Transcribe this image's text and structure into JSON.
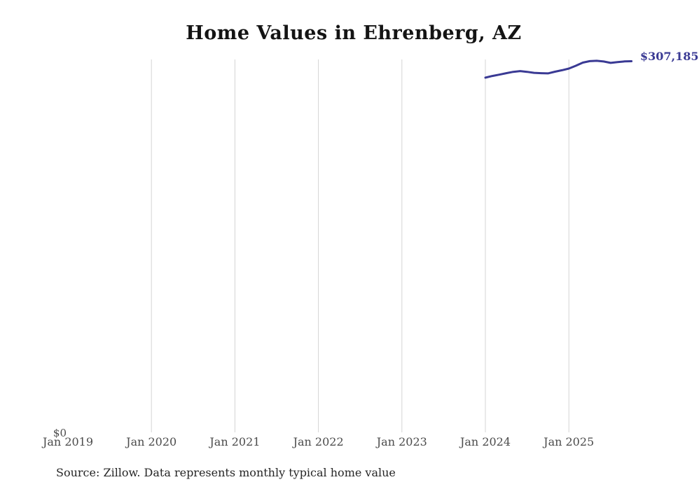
{
  "chart_data": {
    "type": "line",
    "title": "Home Values in Ehrenberg, AZ",
    "source_note": "Source: Zillow. Data represents monthly typical home value",
    "end_label": "$307,185",
    "xlabel": "",
    "ylabel": "",
    "ylim": [
      0,
      308600
    ],
    "grid": "vertical-only",
    "legend_position": "none",
    "y_tick_labels": [
      "$0"
    ],
    "x_ticks": [
      {
        "label": "Jan 2019",
        "year": 2019,
        "gridline": false
      },
      {
        "label": "Jan 2020",
        "year": 2020,
        "gridline": true
      },
      {
        "label": "Jan 2021",
        "year": 2021,
        "gridline": true
      },
      {
        "label": "Jan 2022",
        "year": 2022,
        "gridline": true
      },
      {
        "label": "Jan 2023",
        "year": 2023,
        "gridline": true
      },
      {
        "label": "Jan 2024",
        "year": 2024,
        "gridline": true
      },
      {
        "label": "Jan 2025",
        "year": 2025,
        "gridline": true
      }
    ],
    "series": [
      {
        "name": "Monthly typical home value",
        "points": [
          {
            "month": "2024-01",
            "value": 293600
          },
          {
            "month": "2024-02",
            "value": 295000
          },
          {
            "month": "2024-03",
            "value": 296100
          },
          {
            "month": "2024-04",
            "value": 297300
          },
          {
            "month": "2024-05",
            "value": 298400
          },
          {
            "month": "2024-06",
            "value": 299000
          },
          {
            "month": "2024-07",
            "value": 298400
          },
          {
            "month": "2024-08",
            "value": 297600
          },
          {
            "month": "2024-09",
            "value": 297300
          },
          {
            "month": "2024-10",
            "value": 297100
          },
          {
            "month": "2024-11",
            "value": 298500
          },
          {
            "month": "2024-12",
            "value": 299700
          },
          {
            "month": "2025-01",
            "value": 301100
          },
          {
            "month": "2025-02",
            "value": 303400
          },
          {
            "month": "2025-03",
            "value": 306000
          },
          {
            "month": "2025-04",
            "value": 307200
          },
          {
            "month": "2025-05",
            "value": 307500
          },
          {
            "month": "2025-06",
            "value": 306900
          },
          {
            "month": "2025-07",
            "value": 305800
          },
          {
            "month": "2025-08",
            "value": 306400
          },
          {
            "month": "2025-09",
            "value": 307000
          },
          {
            "month": "2025-10",
            "value": 307185
          }
        ]
      }
    ],
    "colors": {
      "line": "#3a3a94",
      "end_label": "#3a3a94",
      "grid": "#d4d4d4",
      "title": "#141414",
      "tick": "#4b4b4b",
      "source": "#262626",
      "background": "#ffffff"
    }
  }
}
